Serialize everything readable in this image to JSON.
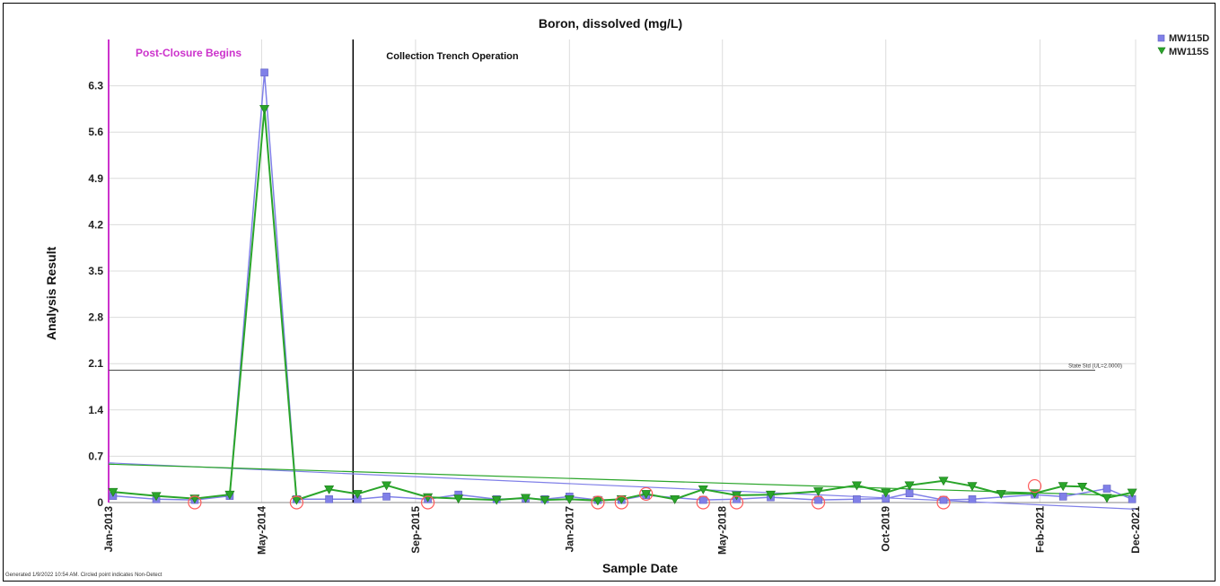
{
  "footer_note": "Generated 1/9/2022 10:54 AM. Circled point indicates Non-Detect",
  "colors": {
    "mw115d": "#8080e8",
    "mw115s": "#2aa52a",
    "post_closure": "#cc33cc",
    "trench": "#000000",
    "state_std": "#555555",
    "grid": "#dcdcdc",
    "nondetect": "#ff5a5a"
  },
  "chart_data": {
    "type": "line",
    "title": "Boron, dissolved (mg/L)",
    "xlabel": "Sample Date",
    "ylabel": "Analysis Result",
    "x_type": "date",
    "xlim": [
      "2013-01-01",
      "2021-12-01"
    ],
    "ylim": [
      0,
      7.0
    ],
    "y_ticks": [
      "0",
      "0.7",
      "1.4",
      "2.1",
      "2.8",
      "3.5",
      "4.2",
      "4.9",
      "5.6",
      "6.3"
    ],
    "x_ticks": [
      {
        "date": "2013-01-01",
        "label": "Jan-2013"
      },
      {
        "date": "2014-05-01",
        "label": "May-2014"
      },
      {
        "date": "2015-09-01",
        "label": "Sep-2015"
      },
      {
        "date": "2017-01-01",
        "label": "Jan-2017"
      },
      {
        "date": "2018-05-01",
        "label": "May-2018"
      },
      {
        "date": "2019-10-01",
        "label": "Oct-2019"
      },
      {
        "date": "2021-02-01",
        "label": "Feb-2021"
      },
      {
        "date": "2021-12-01",
        "label": "Dec-2021"
      }
    ],
    "grid": true,
    "legend_position": "top-right",
    "annotations": {
      "post_closure": {
        "date": "2013-01-01",
        "label": "Post-Closure Begins"
      },
      "trench": {
        "date": "2015-02-15",
        "label": "Collection Trench Operation"
      },
      "state_std": {
        "value": 2.0,
        "label": "State Std (UL=2.0000)"
      }
    },
    "series": [
      {
        "name": "MW115D",
        "marker": "square",
        "points": [
          {
            "date": "2013-01-15",
            "value": 0.1
          },
          {
            "date": "2013-06-01",
            "value": 0.05
          },
          {
            "date": "2013-10-01",
            "value": 0.04
          },
          {
            "date": "2014-01-20",
            "value": 0.1
          },
          {
            "date": "2014-05-10",
            "value": 6.5
          },
          {
            "date": "2014-08-20",
            "value": 0.05
          },
          {
            "date": "2014-12-01",
            "value": 0.05
          },
          {
            "date": "2015-03-01",
            "value": 0.05
          },
          {
            "date": "2015-06-01",
            "value": 0.09
          },
          {
            "date": "2015-10-10",
            "value": 0.05
          },
          {
            "date": "2016-01-15",
            "value": 0.12
          },
          {
            "date": "2016-05-15",
            "value": 0.05
          },
          {
            "date": "2016-08-15",
            "value": 0.06
          },
          {
            "date": "2016-10-15",
            "value": 0.05
          },
          {
            "date": "2017-01-01",
            "value": 0.09
          },
          {
            "date": "2017-04-01",
            "value": 0.04
          },
          {
            "date": "2017-06-15",
            "value": 0.04
          },
          {
            "date": "2017-09-01",
            "value": 0.11
          },
          {
            "date": "2018-03-01",
            "value": 0.04
          },
          {
            "date": "2018-06-15",
            "value": 0.05
          },
          {
            "date": "2018-10-01",
            "value": 0.08
          },
          {
            "date": "2019-03-01",
            "value": 0.04
          },
          {
            "date": "2019-07-01",
            "value": 0.05
          },
          {
            "date": "2019-10-01",
            "value": 0.06
          },
          {
            "date": "2019-12-15",
            "value": 0.14
          },
          {
            "date": "2020-04-01",
            "value": 0.04
          },
          {
            "date": "2020-07-01",
            "value": 0.05
          },
          {
            "date": "2021-01-15",
            "value": 0.12
          },
          {
            "date": "2021-04-15",
            "value": 0.09
          },
          {
            "date": "2021-09-01",
            "value": 0.21
          },
          {
            "date": "2021-11-20",
            "value": 0.05
          }
        ],
        "trend": [
          0.6,
          -0.1
        ]
      },
      {
        "name": "MW115S",
        "marker": "triangle-down",
        "points": [
          {
            "date": "2013-01-15",
            "value": 0.16
          },
          {
            "date": "2013-06-01",
            "value": 0.1
          },
          {
            "date": "2013-10-01",
            "value": 0.06
          },
          {
            "date": "2014-01-20",
            "value": 0.12
          },
          {
            "date": "2014-05-10",
            "value": 5.95
          },
          {
            "date": "2014-08-20",
            "value": 0.04
          },
          {
            "date": "2014-12-01",
            "value": 0.2
          },
          {
            "date": "2015-03-01",
            "value": 0.13
          },
          {
            "date": "2015-06-01",
            "value": 0.26
          },
          {
            "date": "2015-10-10",
            "value": 0.08
          },
          {
            "date": "2016-01-15",
            "value": 0.06
          },
          {
            "date": "2016-05-15",
            "value": 0.04
          },
          {
            "date": "2016-08-15",
            "value": 0.07
          },
          {
            "date": "2016-10-15",
            "value": 0.04
          },
          {
            "date": "2017-01-01",
            "value": 0.05
          },
          {
            "date": "2017-04-01",
            "value": 0.03
          },
          {
            "date": "2017-06-15",
            "value": 0.05
          },
          {
            "date": "2017-09-01",
            "value": 0.13
          },
          {
            "date": "2017-12-01",
            "value": 0.05
          },
          {
            "date": "2018-03-01",
            "value": 0.2
          },
          {
            "date": "2018-06-15",
            "value": 0.11
          },
          {
            "date": "2018-10-01",
            "value": 0.12
          },
          {
            "date": "2019-03-01",
            "value": 0.17
          },
          {
            "date": "2019-07-01",
            "value": 0.26
          },
          {
            "date": "2019-10-01",
            "value": 0.15
          },
          {
            "date": "2019-12-15",
            "value": 0.26
          },
          {
            "date": "2020-04-01",
            "value": 0.33
          },
          {
            "date": "2020-07-01",
            "value": 0.25
          },
          {
            "date": "2020-10-01",
            "value": 0.13
          },
          {
            "date": "2021-01-15",
            "value": 0.14
          },
          {
            "date": "2021-04-15",
            "value": 0.25
          },
          {
            "date": "2021-06-15",
            "value": 0.24
          },
          {
            "date": "2021-09-01",
            "value": 0.07
          },
          {
            "date": "2021-11-20",
            "value": 0.15
          }
        ],
        "trend": [
          0.58,
          0.1
        ]
      }
    ],
    "non_detects": [
      {
        "date": "2013-10-01",
        "value": 0.0
      },
      {
        "date": "2014-08-20",
        "value": 0.0
      },
      {
        "date": "2015-10-10",
        "value": 0.0
      },
      {
        "date": "2017-04-01",
        "value": 0.0
      },
      {
        "date": "2017-06-15",
        "value": 0.0
      },
      {
        "date": "2017-09-01",
        "value": 0.13
      },
      {
        "date": "2018-03-01",
        "value": 0.0
      },
      {
        "date": "2018-06-15",
        "value": 0.0
      },
      {
        "date": "2019-03-01",
        "value": 0.0
      },
      {
        "date": "2020-04-01",
        "value": 0.0
      },
      {
        "date": "2021-01-15",
        "value": 0.25
      }
    ]
  }
}
